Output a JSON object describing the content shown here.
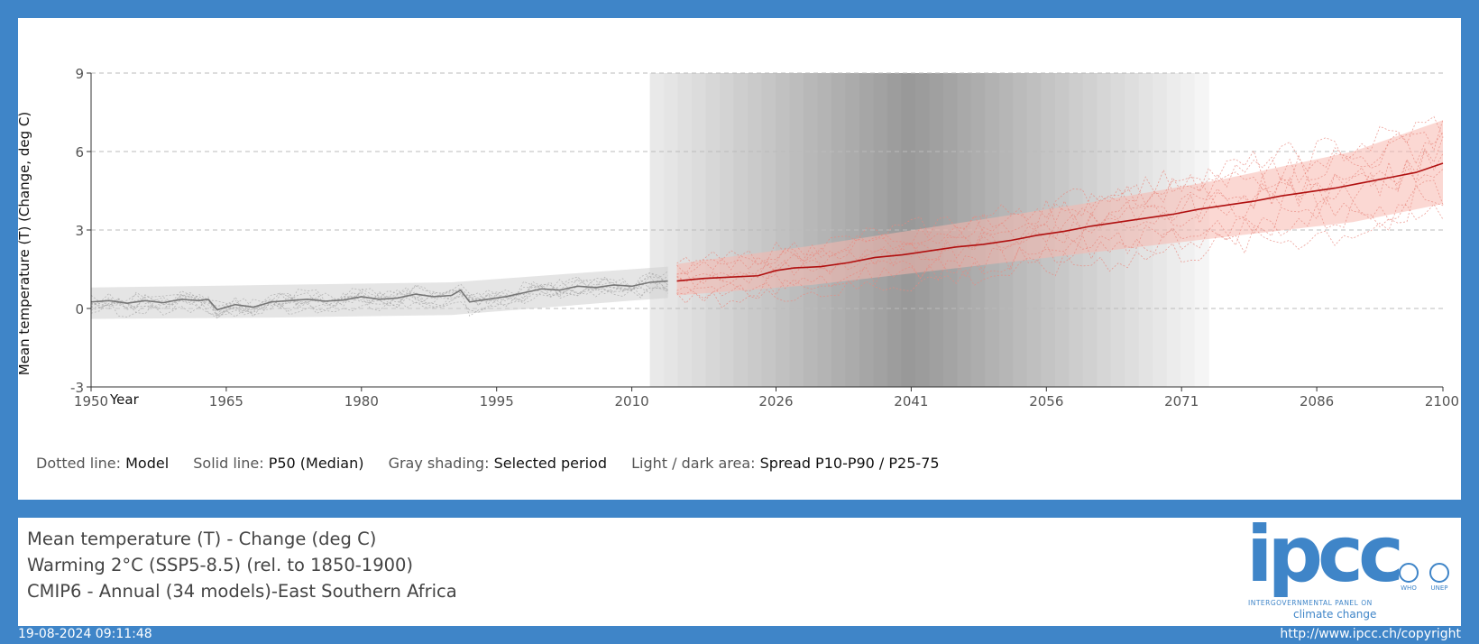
{
  "chart_data": {
    "type": "line",
    "ylabel": "Mean temperature (T) (Change, deg C)",
    "xlabel": "Year",
    "xlim": [
      1950,
      2100
    ],
    "ylim": [
      -3,
      9
    ],
    "x_ticks": [
      "1950",
      "1965",
      "1980",
      "1995",
      "2010",
      "2026",
      "2041",
      "2056",
      "2071",
      "2086",
      "2100"
    ],
    "y_ticks": [
      "-3",
      "0",
      "3",
      "6",
      "9"
    ],
    "grid": "horizontal dashed",
    "selected_period": [
      2012,
      2074
    ],
    "series": [
      {
        "name": "P50 (Median)",
        "segment": "historical",
        "color": "#777777",
        "x": [
          1950,
          1952,
          1954,
          1956,
          1958,
          1960,
          1962,
          1963,
          1964,
          1966,
          1968,
          1970,
          1972,
          1974,
          1976,
          1978,
          1980,
          1982,
          1984,
          1986,
          1988,
          1990,
          1991,
          1992,
          1994,
          1996,
          1998,
          2000,
          2002,
          2004,
          2006,
          2008,
          2010,
          2012,
          2014
        ],
        "y": [
          0.25,
          0.3,
          0.2,
          0.3,
          0.22,
          0.35,
          0.3,
          0.35,
          -0.05,
          0.15,
          0.05,
          0.25,
          0.3,
          0.35,
          0.28,
          0.32,
          0.45,
          0.35,
          0.4,
          0.55,
          0.45,
          0.5,
          0.7,
          0.25,
          0.35,
          0.45,
          0.6,
          0.75,
          0.7,
          0.85,
          0.8,
          0.9,
          0.85,
          1.0,
          1.05
        ]
      },
      {
        "name": "P50 (Median)",
        "segment": "SSP5-8.5",
        "color": "#b01010",
        "x": [
          2015,
          2018,
          2021,
          2024,
          2026,
          2028,
          2031,
          2034,
          2037,
          2040,
          2043,
          2046,
          2049,
          2052,
          2055,
          2058,
          2061,
          2064,
          2067,
          2070,
          2073,
          2076,
          2079,
          2082,
          2085,
          2088,
          2091,
          2094,
          2097,
          2100
        ],
        "y": [
          1.05,
          1.15,
          1.2,
          1.25,
          1.45,
          1.55,
          1.6,
          1.75,
          1.95,
          2.05,
          2.2,
          2.35,
          2.45,
          2.6,
          2.8,
          2.95,
          3.15,
          3.3,
          3.45,
          3.6,
          3.8,
          3.95,
          4.1,
          4.3,
          4.45,
          4.6,
          4.8,
          5.0,
          5.2,
          5.55
        ]
      }
    ],
    "bands": [
      {
        "name": "Spread P10-P90",
        "segment": "historical",
        "x": [
          1950,
          1970,
          1990,
          2010,
          2014
        ],
        "lower": [
          -0.4,
          -0.35,
          -0.25,
          0.3,
          0.4
        ],
        "upper": [
          0.8,
          0.9,
          1.0,
          1.5,
          1.6
        ]
      },
      {
        "name": "Spread P10-P90",
        "segment": "SSP5-8.5",
        "x": [
          2015,
          2030,
          2045,
          2060,
          2075,
          2090,
          2100
        ],
        "lower": [
          0.5,
          0.9,
          1.5,
          2.1,
          2.7,
          3.3,
          4.0
        ],
        "upper": [
          1.7,
          2.4,
          3.2,
          4.0,
          4.9,
          6.0,
          7.2
        ]
      }
    ]
  },
  "legend": {
    "dotted_label": "Dotted line:",
    "dotted_value": "Model",
    "solid_label": "Solid line:",
    "solid_value": "P50 (Median)",
    "gray_label": "Gray shading:",
    "gray_value": "Selected period",
    "area_label": "Light / dark area:",
    "area_value": "Spread P10-P90 / P25-75"
  },
  "info": {
    "line1": "Mean temperature (T) - Change (deg C)",
    "line2": "Warming 2°C (SSP5-8.5) (rel. to 1850-1900)",
    "line3": "CMIP6 - Annual (34 models)-East Southern Africa"
  },
  "footer": {
    "timestamp": "19-08-2024 09:11:48",
    "copyright": "http://www.ipcc.ch/copyright"
  },
  "logo": {
    "text": "ipcc",
    "sub1": "INTERGOVERNMENTAL PANEL ON",
    "sub2": "climate change",
    "who": "WHO",
    "unep": "UNEP"
  },
  "colors": {
    "frame": "#3f85c8",
    "historical": "#777777",
    "scenario": "#b01010",
    "scenario_band": "#f7b8ae"
  }
}
